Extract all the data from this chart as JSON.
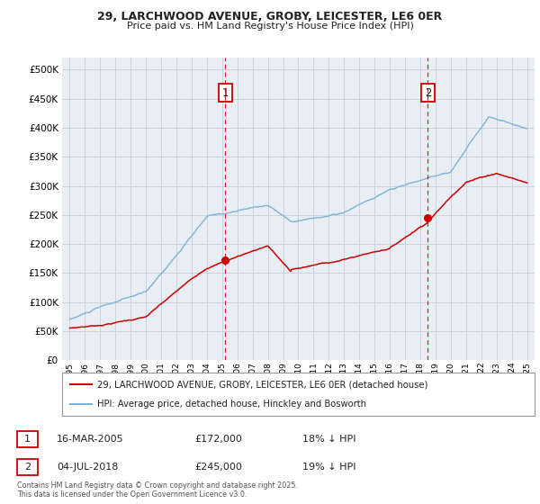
{
  "title": "29, LARCHWOOD AVENUE, GROBY, LEICESTER, LE6 0ER",
  "subtitle": "Price paid vs. HM Land Registry's House Price Index (HPI)",
  "legend_line1": "29, LARCHWOOD AVENUE, GROBY, LEICESTER, LE6 0ER (detached house)",
  "legend_line2": "HPI: Average price, detached house, Hinckley and Bosworth",
  "annotation1_label": "1",
  "annotation1_date": "16-MAR-2005",
  "annotation1_price": "£172,000",
  "annotation1_hpi": "18% ↓ HPI",
  "annotation2_label": "2",
  "annotation2_date": "04-JUL-2018",
  "annotation2_price": "£245,000",
  "annotation2_hpi": "19% ↓ HPI",
  "footnote": "Contains HM Land Registry data © Crown copyright and database right 2025.\nThis data is licensed under the Open Government Licence v3.0.",
  "vline1_x": 2005.21,
  "vline2_x": 2018.5,
  "marker1_x": 2005.21,
  "marker1_y": 172000,
  "marker2_x": 2018.5,
  "marker2_y": 245000,
  "price_color": "#cc0000",
  "hpi_color": "#7fb3d3",
  "background_color": "#e8eef4",
  "plot_bg_color": "#e8eef4",
  "grid_color": "#c8d4e0",
  "ylim": [
    0,
    520000
  ],
  "xlim": [
    1994.5,
    2025.5
  ]
}
